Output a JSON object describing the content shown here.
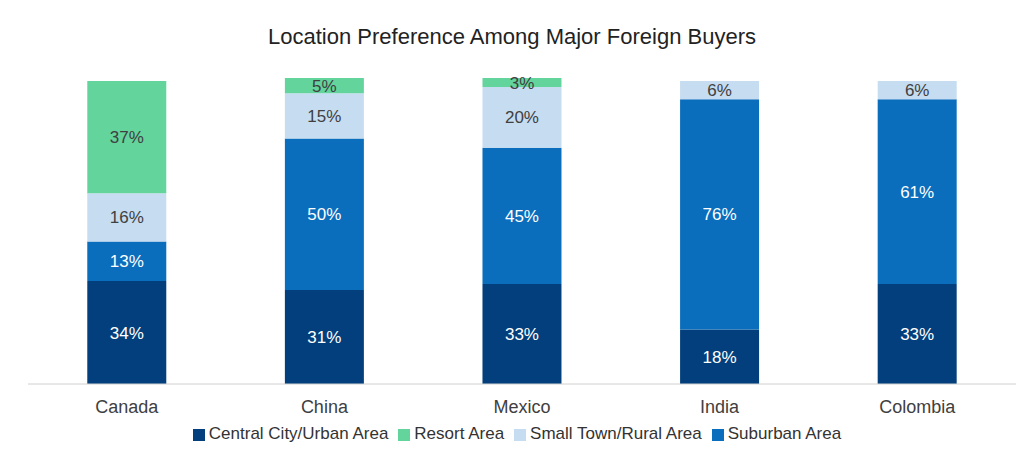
{
  "chart_data": {
    "type": "bar",
    "title": "Location Preference Among Major Foreign Buyers",
    "categories": [
      "Canada",
      "China",
      "Mexico",
      "India",
      "Colombia"
    ],
    "series": [
      {
        "name": "Central City/Urban Area",
        "color": "#033f7c",
        "values": [
          34,
          31,
          33,
          18,
          33
        ],
        "value_labels": [
          "34%",
          "31%",
          "33%",
          "18%",
          "33%"
        ]
      },
      {
        "name": "Suburban Area",
        "color": "#0a6ebd",
        "values": [
          13,
          50,
          45,
          76,
          61
        ],
        "value_labels": [
          "13%",
          "50%",
          "45%",
          "76%",
          "61%"
        ]
      },
      {
        "name": "Small Town/Rural Area",
        "color": "#c6dcf0",
        "values": [
          16,
          15,
          20,
          6,
          6
        ],
        "value_labels": [
          "16%",
          "15%",
          "20%",
          "6%",
          "6%"
        ]
      },
      {
        "name": "Resort Area",
        "color": "#62d49c",
        "values": [
          37,
          5,
          3,
          null,
          null
        ],
        "value_labels": [
          "37%",
          "5%",
          "3%",
          null,
          null
        ]
      }
    ],
    "ylim": [
      0,
      101
    ],
    "stacked": true,
    "data_labels": true,
    "tick_labels": "x",
    "grid": false,
    "legend": "bottom"
  }
}
